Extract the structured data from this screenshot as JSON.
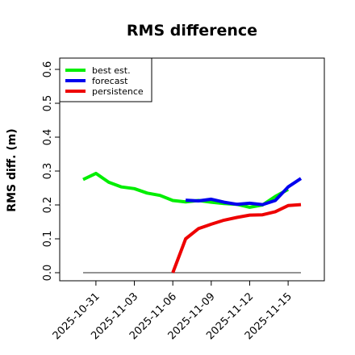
{
  "chart_data": {
    "type": "line",
    "title": "RMS difference",
    "xlabel": "",
    "ylabel": "RMS diff. (m)",
    "ylim": [
      -0.015,
      0.64
    ],
    "yticks": [
      "0.0",
      "0.1",
      "0.2",
      "0.3",
      "0.4",
      "0.5",
      "0.6"
    ],
    "xticks": [
      "2025-10-31",
      "2025-11-03",
      "2025-11-06",
      "2025-11-09",
      "2025-11-12",
      "2025-11-15"
    ],
    "highlight_tick": "2025-11-06",
    "highlight_color": "#228B22",
    "reference_line": 0.0,
    "legend_position": "top-left",
    "series": [
      {
        "name": "best est.",
        "color": "#00ee00",
        "points": [
          [
            "2025-10-30",
            0.275
          ],
          [
            "2025-10-31",
            0.293
          ],
          [
            "2025-11-01",
            0.267
          ],
          [
            "2025-11-02",
            0.253
          ],
          [
            "2025-11-03",
            0.248
          ],
          [
            "2025-11-04",
            0.235
          ],
          [
            "2025-11-05",
            0.228
          ],
          [
            "2025-11-06",
            0.213
          ],
          [
            "2025-11-07",
            0.209
          ],
          [
            "2025-11-08",
            0.213
          ],
          [
            "2025-11-09",
            0.208
          ],
          [
            "2025-11-10",
            0.204
          ],
          [
            "2025-11-11",
            0.202
          ],
          [
            "2025-11-12",
            0.193
          ],
          [
            "2025-11-13",
            0.2
          ],
          [
            "2025-11-14",
            0.225
          ],
          [
            "2025-11-15",
            0.246
          ]
        ]
      },
      {
        "name": "forecast",
        "color": "#0000ee",
        "points": [
          [
            "2025-11-07",
            0.214
          ],
          [
            "2025-11-08",
            0.212
          ],
          [
            "2025-11-09",
            0.217
          ],
          [
            "2025-11-10",
            0.208
          ],
          [
            "2025-11-11",
            0.202
          ],
          [
            "2025-11-12",
            0.205
          ],
          [
            "2025-11-13",
            0.201
          ],
          [
            "2025-11-14",
            0.213
          ],
          [
            "2025-11-15",
            0.253
          ],
          [
            "2025-11-16",
            0.278
          ]
        ]
      },
      {
        "name": "persistence",
        "color": "#ee0000",
        "points": [
          [
            "2025-11-06",
            0.0
          ],
          [
            "2025-11-07",
            0.1
          ],
          [
            "2025-11-08",
            0.13
          ],
          [
            "2025-11-09",
            0.143
          ],
          [
            "2025-11-10",
            0.155
          ],
          [
            "2025-11-11",
            0.163
          ],
          [
            "2025-11-12",
            0.17
          ],
          [
            "2025-11-13",
            0.171
          ],
          [
            "2025-11-14",
            0.18
          ],
          [
            "2025-11-15",
            0.198
          ],
          [
            "2025-11-16",
            0.201
          ]
        ]
      }
    ]
  }
}
